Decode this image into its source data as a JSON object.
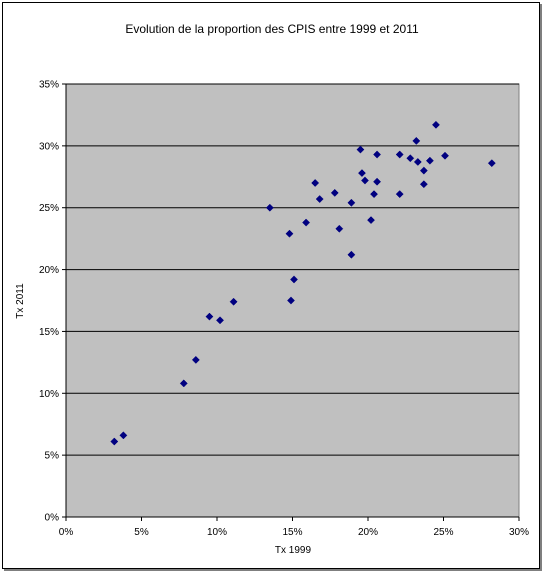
{
  "chart_data": {
    "type": "scatter",
    "title": "Evolution de la proportion des CPIS entre 1999 et 2011",
    "xlabel": "Tx 1999",
    "ylabel": "Tx 2011",
    "xlim": [
      0,
      0.3
    ],
    "ylim": [
      0,
      0.35
    ],
    "x_ticks": [
      0,
      0.05,
      0.1,
      0.15,
      0.2,
      0.25,
      0.3
    ],
    "x_tick_labels": [
      "0%",
      "5%",
      "10%",
      "15%",
      "20%",
      "25%",
      "30%"
    ],
    "y_ticks": [
      0,
      0.05,
      0.1,
      0.15,
      0.2,
      0.25,
      0.3,
      0.35
    ],
    "y_tick_labels": [
      "0%",
      "5%",
      "10%",
      "15%",
      "20%",
      "25%",
      "30%",
      "35%"
    ],
    "grid": "horizontal",
    "legend": "none",
    "colors": {
      "plot_background": "#c0c0c0",
      "marker": "#000080",
      "gridline": "#000000"
    },
    "points": [
      {
        "x": 0.032,
        "y": 0.061
      },
      {
        "x": 0.038,
        "y": 0.066
      },
      {
        "x": 0.078,
        "y": 0.108
      },
      {
        "x": 0.086,
        "y": 0.127
      },
      {
        "x": 0.095,
        "y": 0.162
      },
      {
        "x": 0.102,
        "y": 0.159
      },
      {
        "x": 0.111,
        "y": 0.174
      },
      {
        "x": 0.135,
        "y": 0.25
      },
      {
        "x": 0.148,
        "y": 0.229
      },
      {
        "x": 0.149,
        "y": 0.175
      },
      {
        "x": 0.151,
        "y": 0.192
      },
      {
        "x": 0.159,
        "y": 0.238
      },
      {
        "x": 0.165,
        "y": 0.27
      },
      {
        "x": 0.168,
        "y": 0.257
      },
      {
        "x": 0.178,
        "y": 0.262
      },
      {
        "x": 0.181,
        "y": 0.233
      },
      {
        "x": 0.189,
        "y": 0.254
      },
      {
        "x": 0.189,
        "y": 0.212
      },
      {
        "x": 0.195,
        "y": 0.297
      },
      {
        "x": 0.196,
        "y": 0.278
      },
      {
        "x": 0.198,
        "y": 0.272
      },
      {
        "x": 0.202,
        "y": 0.24
      },
      {
        "x": 0.204,
        "y": 0.261
      },
      {
        "x": 0.206,
        "y": 0.271
      },
      {
        "x": 0.206,
        "y": 0.293
      },
      {
        "x": 0.221,
        "y": 0.293
      },
      {
        "x": 0.221,
        "y": 0.261
      },
      {
        "x": 0.228,
        "y": 0.29
      },
      {
        "x": 0.232,
        "y": 0.304
      },
      {
        "x": 0.233,
        "y": 0.287
      },
      {
        "x": 0.237,
        "y": 0.28
      },
      {
        "x": 0.237,
        "y": 0.269
      },
      {
        "x": 0.241,
        "y": 0.288
      },
      {
        "x": 0.245,
        "y": 0.317
      },
      {
        "x": 0.251,
        "y": 0.292
      },
      {
        "x": 0.282,
        "y": 0.286
      }
    ]
  }
}
